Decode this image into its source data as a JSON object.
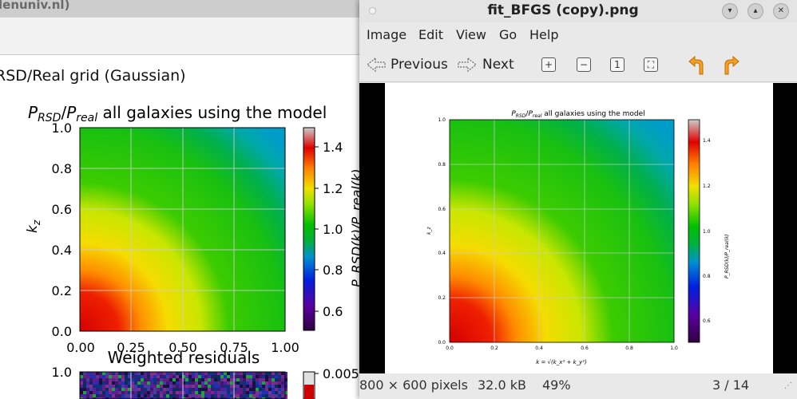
{
  "background_window": {
    "title": "lenuniv.nl)",
    "heading": "RSD/Real grid (Gaussian)",
    "plot1": {
      "title": "P_RSD/P_real all galaxies using the model",
      "title_parts": {
        "p1": "P",
        "s1": "RSD",
        "slash": "/",
        "p2": "P",
        "s2": "real",
        "rest": " all galaxies using the model"
      },
      "y_label": "k_z",
      "y_label_parts": {
        "k": "k",
        "sub": "z"
      },
      "y_ticks": [
        "1.0",
        "0.8",
        "0.6",
        "0.4",
        "0.2",
        "0.0"
      ],
      "x_ticks": [
        "0.00",
        "0.25",
        "0.50",
        "0.75",
        "1.00"
      ],
      "colorbar_ticks": [
        "1.4",
        "1.2",
        "1.0",
        "0.8",
        "0.6"
      ],
      "colorbar_label": "P_RSD(k)/P_real(k)"
    },
    "plot2": {
      "title": "Weighted residuals",
      "y_tick": "1.0",
      "colorbar_tick": "0.005"
    }
  },
  "viewer_window": {
    "title": "fit_BFGS (copy).png",
    "menu": [
      "Image",
      "Edit",
      "View",
      "Go",
      "Help"
    ],
    "toolbar": {
      "previous": "Previous",
      "next": "Next"
    },
    "image": {
      "title_parts": {
        "p1": "P",
        "s1": "RSD",
        "slash": "/",
        "p2": "P",
        "s2": "real",
        "rest": " all galaxies using the model"
      },
      "y_label": "k_z",
      "y_ticks": [
        "1.0",
        "0.8",
        "0.6",
        "0.4",
        "0.2",
        "0.0"
      ],
      "x_ticks": [
        "0.0",
        "0.2",
        "0.4",
        "0.6",
        "0.8",
        "1.0"
      ],
      "x_label": "k = √(k_x² + k_y²)",
      "colorbar_ticks": [
        "1.4",
        "1.2",
        "1.0",
        "0.8",
        "0.6"
      ],
      "colorbar_label": "P_RSD(k)/P_real(k)"
    },
    "status": {
      "dimensions": "800 × 600 pixels",
      "size": "32.0 kB",
      "zoom": "49%",
      "position": "3 / 14"
    }
  }
}
